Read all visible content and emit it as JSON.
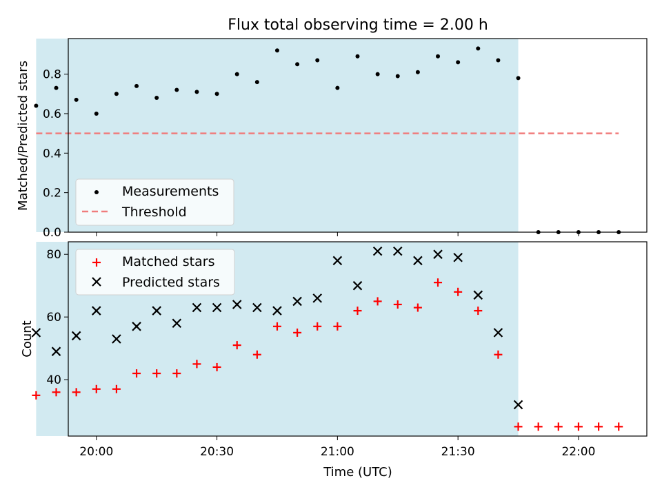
{
  "chart_data": {
    "type": "scatter",
    "title": "Flux total observing time = 2.00 h",
    "xlabel": "Time (UTC)",
    "x_tick_labels": [
      "20:00",
      "20:30",
      "21:00",
      "21:30",
      "22:00"
    ],
    "x_tick_values": [
      "20:00",
      "20:30",
      "21:00",
      "21:30",
      "22:00"
    ],
    "x_range": [
      "19:53",
      "22:17"
    ],
    "observing_window": [
      "19:45",
      "21:45"
    ],
    "times": [
      "19:45",
      "19:50",
      "19:55",
      "20:00",
      "20:05",
      "20:10",
      "20:15",
      "20:20",
      "20:25",
      "20:30",
      "20:35",
      "20:40",
      "20:45",
      "20:50",
      "20:55",
      "21:00",
      "21:05",
      "21:10",
      "21:15",
      "21:20",
      "21:25",
      "21:30",
      "21:35",
      "21:40",
      "21:45",
      "21:50",
      "21:55",
      "22:00",
      "22:05",
      "22:10"
    ],
    "top_panel": {
      "ylabel": "Matched/Predicted stars",
      "ylim": [
        0.0,
        0.98
      ],
      "yticks": [
        0.0,
        0.2,
        0.4,
        0.6,
        0.8
      ],
      "legend_position": "lower-left",
      "series": [
        {
          "name": "Measurements",
          "marker": "dot",
          "color": "#000000",
          "values": [
            0.64,
            0.73,
            0.67,
            0.6,
            0.7,
            0.74,
            0.68,
            0.72,
            0.71,
            0.7,
            0.8,
            0.76,
            0.92,
            0.85,
            0.87,
            0.73,
            0.89,
            0.8,
            0.79,
            0.81,
            0.89,
            0.86,
            0.93,
            0.87,
            0.78,
            0.0,
            0.0,
            0.0,
            0.0,
            0.0
          ]
        },
        {
          "name": "Threshold",
          "line_style": "dashed",
          "color": "#f07c7c",
          "value": 0.5,
          "x_span": [
            "19:45",
            "22:10"
          ]
        }
      ]
    },
    "bottom_panel": {
      "ylabel": "Count",
      "ylim": [
        22,
        84
      ],
      "yticks": [
        40,
        60,
        80
      ],
      "legend_position": "upper-left",
      "series": [
        {
          "name": "Matched stars",
          "marker": "plus",
          "color": "#ff0000",
          "values": [
            35,
            36,
            36,
            37,
            37,
            42,
            42,
            42,
            45,
            44,
            51,
            48,
            57,
            55,
            57,
            57,
            62,
            65,
            64,
            63,
            71,
            68,
            62,
            48,
            25,
            25,
            25,
            25,
            25,
            25
          ]
        },
        {
          "name": "Predicted stars",
          "marker": "x",
          "color": "#000000",
          "values": [
            55,
            49,
            54,
            62,
            53,
            57,
            62,
            58,
            63,
            63,
            64,
            63,
            62,
            65,
            66,
            78,
            70,
            81,
            81,
            78,
            80,
            79,
            67,
            55,
            32,
            null,
            null,
            null,
            null,
            null
          ]
        }
      ]
    },
    "shade_color": "#add8e6",
    "grid": false
  }
}
